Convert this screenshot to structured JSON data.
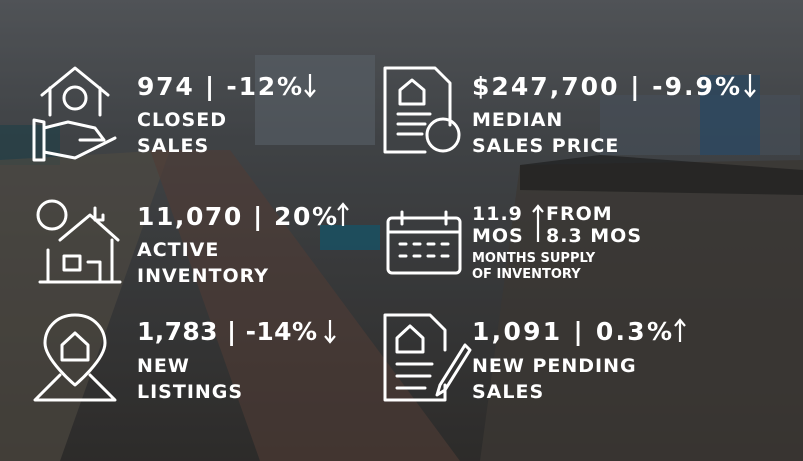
{
  "stats": [
    {
      "value": "974 | -12%",
      "label": [
        "CLOSED",
        "SALES"
      ]
    },
    {
      "value": "$247,700 |  -9.9%",
      "label": [
        "MEDIAN",
        "SALES PRICE"
      ]
    },
    {
      "value": "11,070 |  20%",
      "label": [
        "ACTIVE",
        "INVENTORY"
      ]
    },
    {
      "value": [
        "11.9",
        "MOS"
      ],
      "from": [
        "FROM",
        "8.3 MOS"
      ],
      "label": [
        "MONTHS SUPPLY",
        "OF INVENTORY"
      ]
    },
    {
      "value": "1,783 | -14%",
      "label": [
        "NEW",
        "LISTINGS"
      ]
    },
    {
      "value": "1,091  | 0.3%",
      "label": [
        "NEW PENDING",
        "SALES"
      ]
    }
  ]
}
